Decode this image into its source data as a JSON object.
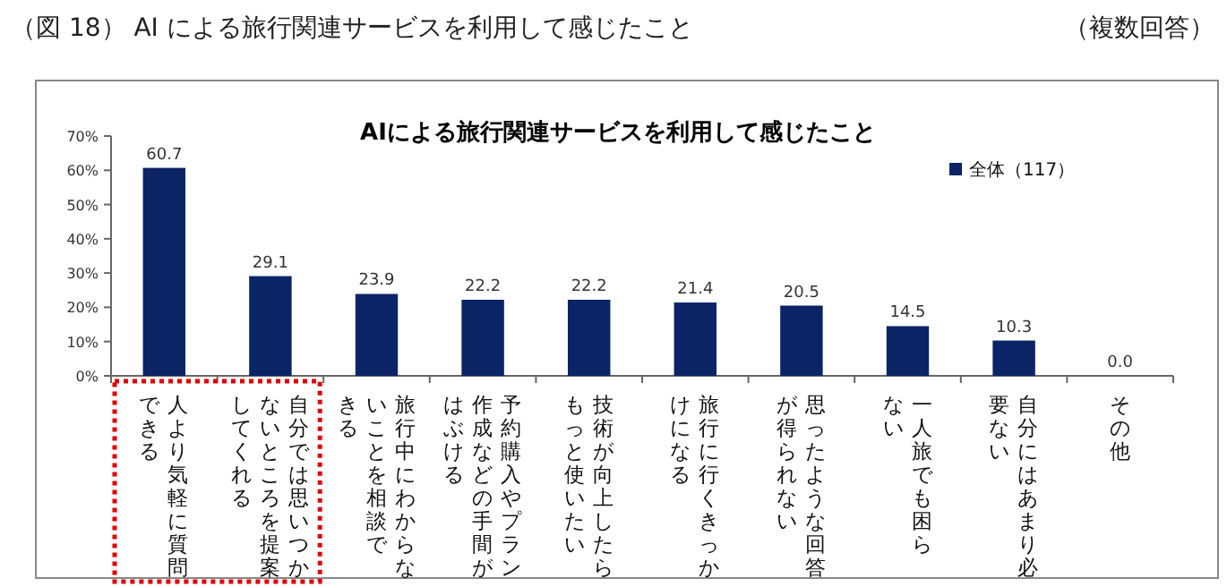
{
  "chart_data": {
    "type": "bar",
    "title": "AIによる旅行関連サービスを利用して感じたこと",
    "subtitle": "（図 18） AI による旅行関連サービスを利用して感じたこと",
    "annotations": [
      "（複数回答）"
    ],
    "categories": [
      "人より気軽に質問できる",
      "自分では思いつかないところを提案してくれる",
      "旅行中にわからないことを相談できる",
      "予約購入やプラン作成などの手間がはぶける",
      "技術が向上したらもっと使いたい",
      "旅行に行くきっかけになる",
      "思ったような回答が得られない",
      "一人旅でも困らない",
      "自分にはあまり必要ない",
      "その他"
    ],
    "series": [
      {
        "name": "全体（117）",
        "color": "#0b2466",
        "values": [
          60.7,
          29.1,
          23.9,
          22.2,
          22.2,
          21.4,
          20.5,
          14.5,
          10.3,
          0.0
        ]
      }
    ],
    "ylim": [
      0,
      70
    ],
    "yticks": [
      {
        "value": 0,
        "label": "0%"
      },
      {
        "value": 10,
        "label": "10%"
      },
      {
        "value": 20,
        "label": "20%"
      },
      {
        "value": 30,
        "label": "30%"
      },
      {
        "value": 40,
        "label": "40%"
      },
      {
        "value": 50,
        "label": "50%"
      },
      {
        "value": 60,
        "label": "60%"
      },
      {
        "value": 70,
        "label": "70%"
      }
    ],
    "value_labels": [
      "60.7",
      "29.1",
      "23.9",
      "22.2",
      "22.2",
      "21.4",
      "20.5",
      "14.5",
      "10.3",
      "0.0"
    ],
    "legend": "top right",
    "grid": false
  }
}
